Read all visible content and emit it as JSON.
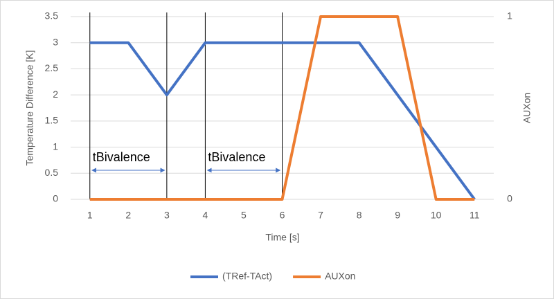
{
  "chart_data": {
    "type": "line",
    "x": [
      1,
      2,
      3,
      4,
      5,
      6,
      7,
      8,
      9,
      10,
      11
    ],
    "series": [
      {
        "name": "(TRef-TAct)",
        "color": "#4472c4",
        "values": [
          3,
          3,
          2,
          3,
          3,
          3,
          3,
          3,
          2,
          1,
          0
        ]
      },
      {
        "name": "AUXon",
        "color": "#ed7d31",
        "axis": "y2",
        "values": [
          0,
          0,
          0,
          0,
          0,
          0,
          1,
          1,
          1,
          0,
          0
        ]
      }
    ],
    "xlim": [
      0.5,
      11.5
    ],
    "xticks": [
      1,
      2,
      3,
      4,
      5,
      6,
      7,
      8,
      9,
      10,
      11
    ],
    "ylim": [
      0,
      3.5
    ],
    "yticks": [
      0,
      0.5,
      1,
      1.5,
      2,
      2.5,
      3,
      3.5
    ],
    "y2lim": [
      0,
      1
    ],
    "y2ticks": [
      0,
      1
    ],
    "xlabel": "Time [s]",
    "ylabel": "Temperature Difference [K]",
    "y2label": "AUXon",
    "grid": true,
    "legend": "bottom",
    "annotations": [
      {
        "text": "tBivalence",
        "x": [
          1,
          3
        ]
      },
      {
        "text": "tBivalence",
        "x": [
          4,
          6
        ]
      }
    ]
  }
}
